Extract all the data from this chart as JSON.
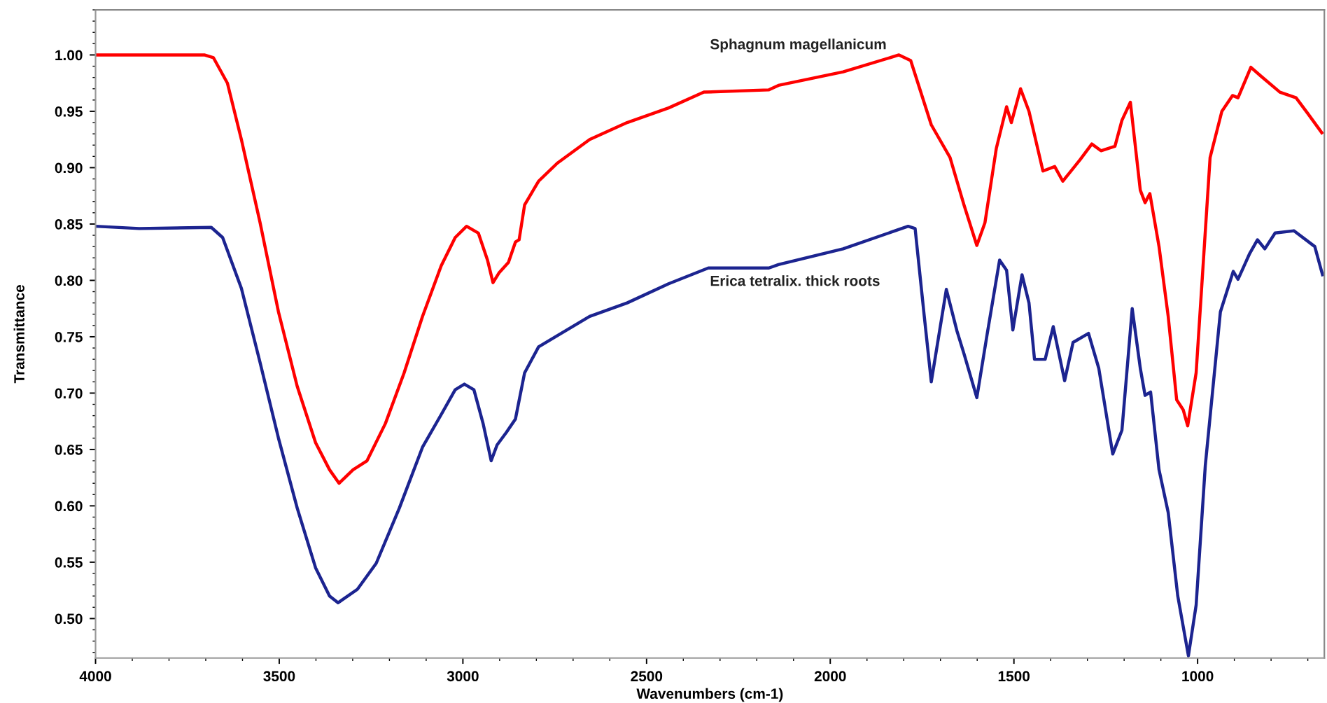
{
  "chart_data": {
    "type": "line",
    "xlabel": "Wavenumbers (cm-1)",
    "ylabel": "Transmittance",
    "xlim": [
      4000,
      655
    ],
    "ylim": [
      0.465,
      1.04
    ],
    "xticks": [
      4000,
      3500,
      3000,
      2500,
      2000,
      1500,
      1000
    ],
    "yticks": [
      {
        "value": 0.5,
        "label": "0.50"
      },
      {
        "value": 0.55,
        "label": "0.55"
      },
      {
        "value": 0.6,
        "label": "0.60"
      },
      {
        "value": 0.65,
        "label": "0.65"
      },
      {
        "value": 0.7,
        "label": "0.70"
      },
      {
        "value": 0.75,
        "label": "0.75"
      },
      {
        "value": 0.8,
        "label": "0.80"
      },
      {
        "value": 0.85,
        "label": "0.85"
      },
      {
        "value": 0.9,
        "label": "0.90"
      },
      {
        "value": 0.95,
        "label": "0.95"
      },
      {
        "value": 1.0,
        "label": "1.00"
      }
    ],
    "grid": false,
    "legend": false,
    "marker": "none",
    "line_style": "solid",
    "series": [
      {
        "name": "Sphagnum magellanicum",
        "color": "#ff0000",
        "x": [
          4000,
          3704,
          3679,
          3641,
          3603,
          3552,
          3502,
          3451,
          3401,
          3363,
          3337,
          3299,
          3261,
          3211,
          3160,
          3110,
          3059,
          3021,
          2990,
          2958,
          2933,
          2918,
          2901,
          2876,
          2857,
          2847,
          2832,
          2794,
          2743,
          2655,
          2553,
          2440,
          2344,
          2167,
          2141,
          1965,
          1813,
          1781,
          1725,
          1674,
          1636,
          1601,
          1579,
          1548,
          1520,
          1507,
          1482,
          1459,
          1421,
          1389,
          1367,
          1320,
          1288,
          1263,
          1225,
          1206,
          1183,
          1156,
          1143,
          1130,
          1105,
          1080,
          1057,
          1039,
          1027,
          1004,
          966,
          934,
          905,
          890,
          855,
          827,
          776,
          732,
          700,
          662
        ],
        "values": [
          1.0,
          1.0,
          0.9975,
          0.975,
          0.925,
          0.851,
          0.772,
          0.706,
          0.656,
          0.632,
          0.62,
          0.632,
          0.64,
          0.673,
          0.718,
          0.768,
          0.813,
          0.838,
          0.848,
          0.842,
          0.818,
          0.798,
          0.807,
          0.816,
          0.834,
          0.836,
          0.867,
          0.888,
          0.904,
          0.925,
          0.94,
          0.953,
          0.967,
          0.969,
          0.973,
          0.985,
          1.0,
          0.995,
          0.938,
          0.909,
          0.867,
          0.831,
          0.851,
          0.917,
          0.954,
          0.94,
          0.97,
          0.95,
          0.897,
          0.901,
          0.888,
          0.907,
          0.921,
          0.915,
          0.919,
          0.942,
          0.958,
          0.88,
          0.869,
          0.877,
          0.83,
          0.768,
          0.694,
          0.685,
          0.671,
          0.718,
          0.909,
          0.95,
          0.964,
          0.962,
          0.989,
          0.981,
          0.967,
          0.962,
          0.948,
          0.931
        ]
      },
      {
        "name": "Erica tetralix. thick roots",
        "color": "#1c2490",
        "x": [
          4000,
          3881,
          3685,
          3654,
          3603,
          3552,
          3502,
          3451,
          3401,
          3363,
          3340,
          3287,
          3236,
          3173,
          3110,
          3059,
          3021,
          2996,
          2970,
          2945,
          2923,
          2907,
          2882,
          2857,
          2832,
          2794,
          2743,
          2655,
          2553,
          2440,
          2332,
          2167,
          2141,
          1965,
          1788,
          1769,
          1744,
          1725,
          1684,
          1655,
          1636,
          1601,
          1573,
          1539,
          1520,
          1503,
          1478,
          1459,
          1444,
          1415,
          1393,
          1362,
          1339,
          1297,
          1269,
          1231,
          1206,
          1178,
          1156,
          1143,
          1128,
          1105,
          1080,
          1054,
          1025,
          1004,
          979,
          938,
          903,
          890,
          858,
          837,
          817,
          789,
          738,
          681,
          660
        ],
        "values": [
          0.848,
          0.846,
          0.847,
          0.838,
          0.793,
          0.727,
          0.66,
          0.598,
          0.545,
          0.52,
          0.514,
          0.526,
          0.549,
          0.598,
          0.652,
          0.681,
          0.703,
          0.708,
          0.703,
          0.673,
          0.64,
          0.654,
          0.665,
          0.677,
          0.718,
          0.741,
          0.751,
          0.768,
          0.78,
          0.797,
          0.811,
          0.811,
          0.814,
          0.828,
          0.848,
          0.846,
          0.768,
          0.71,
          0.792,
          0.755,
          0.735,
          0.696,
          0.752,
          0.818,
          0.809,
          0.756,
          0.805,
          0.78,
          0.73,
          0.73,
          0.759,
          0.711,
          0.745,
          0.753,
          0.722,
          0.646,
          0.667,
          0.775,
          0.722,
          0.698,
          0.701,
          0.632,
          0.594,
          0.52,
          0.467,
          0.512,
          0.636,
          0.772,
          0.808,
          0.801,
          0.824,
          0.836,
          0.828,
          0.842,
          0.844,
          0.83,
          0.805
        ]
      }
    ]
  }
}
